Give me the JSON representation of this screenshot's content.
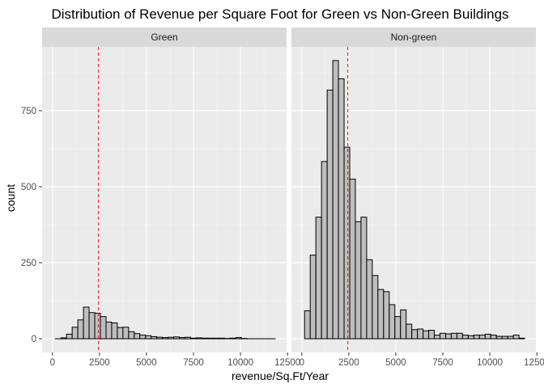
{
  "chart_data": {
    "type": "histogram",
    "title": "Distribution of Revenue per Square Foot for Green vs Non-Green Buildings",
    "xlabel": "revenue/Sq.Ft/Year",
    "ylabel": "count",
    "xlim": [
      -550,
      12450
    ],
    "ylim": [
      -45,
      960
    ],
    "x_ticks": [
      0,
      2500,
      5000,
      7500,
      10000,
      12500
    ],
    "x_tick_labels": [
      "0",
      "2500",
      "5000",
      "7500",
      "10000",
      "12500"
    ],
    "y_ticks": [
      0,
      250,
      500,
      750
    ],
    "y_tick_labels": [
      "0",
      "250",
      "500",
      "750"
    ],
    "bin_width": 300,
    "bin_start": 150,
    "panels": [
      {
        "label": "Green",
        "mean_line": 2450,
        "counts": [
          0,
          3,
          15,
          38,
          62,
          104,
          86,
          84,
          73,
          55,
          52,
          37,
          38,
          23,
          17,
          12,
          10,
          7,
          5,
          4,
          5,
          6,
          4,
          5,
          2,
          3,
          2,
          2,
          2,
          2,
          1,
          2,
          4,
          1,
          0,
          0,
          0,
          0,
          0
        ]
      },
      {
        "label": "Non-green",
        "mean_line": 2450,
        "counts": [
          92,
          275,
          400,
          583,
          818,
          915,
          855,
          630,
          525,
          385,
          400,
          260,
          208,
          162,
          155,
          112,
          73,
          95,
          48,
          30,
          32,
          26,
          28,
          12,
          18,
          16,
          18,
          18,
          12,
          10,
          12,
          12,
          15,
          12,
          8,
          8,
          8,
          12,
          2
        ]
      }
    ]
  }
}
